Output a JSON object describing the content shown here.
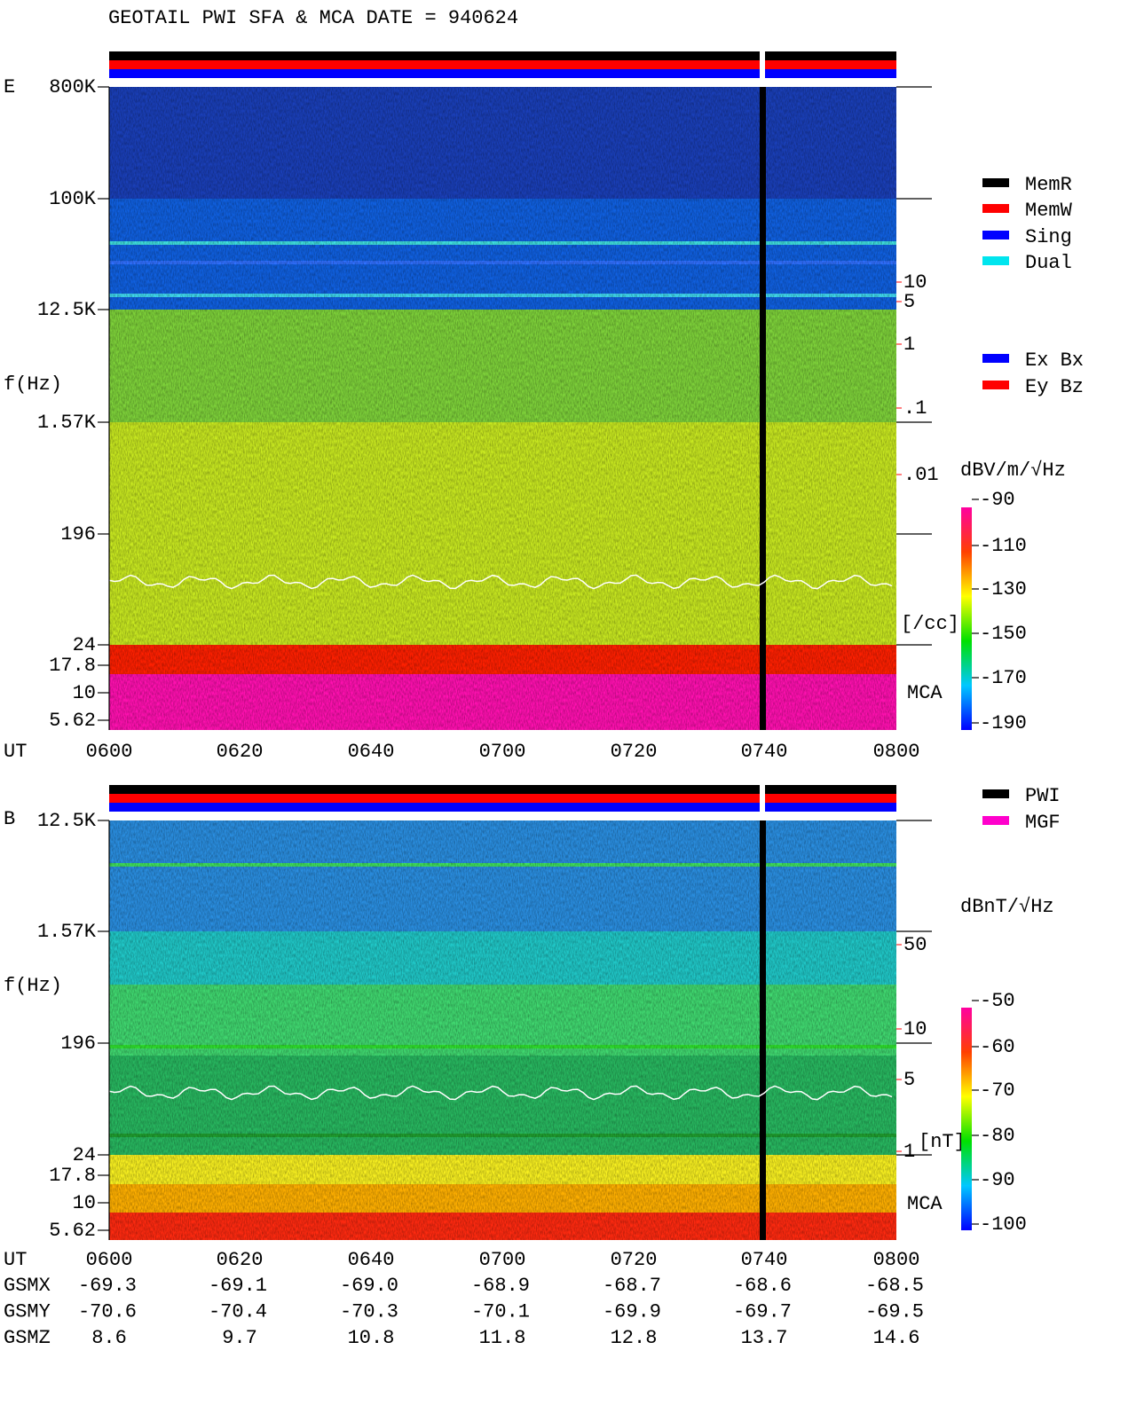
{
  "title": "GEOTAIL  PWI SFA & MCA   DATE = 940624",
  "panels": [
    {
      "label": "E",
      "ylabel": "f(Hz)",
      "yticks": [
        "800K",
        "100K",
        "12.5K",
        "1.57K",
        "196",
        "24",
        "17.8",
        "10",
        "5.62"
      ],
      "xlabel": "UT",
      "xticks": [
        "0600",
        "0620",
        "0640",
        "0700",
        "0720",
        "0740",
        "0800"
      ],
      "mca": "MCA",
      "density_unit": "[/cc]",
      "density_ticks": [
        "10",
        "5",
        "1",
        ".1",
        ".01"
      ],
      "colorbar_unit": "dBV/m/√Hz",
      "colorbar_ticks": [
        "-90",
        "-110",
        "-130",
        "-150",
        "-170",
        "-190"
      ]
    },
    {
      "label": "B",
      "ylabel": "f(Hz)",
      "yticks": [
        "12.5K",
        "1.57K",
        "196",
        "24",
        "17.8",
        "10",
        "5.62"
      ],
      "xlabel": "UT",
      "xticks": [
        "0600",
        "0620",
        "0640",
        "0700",
        "0720",
        "0740",
        "0800"
      ],
      "mca": "MCA",
      "density_unit": "[nT]",
      "density_ticks": [
        "50",
        "10",
        "5",
        "1"
      ],
      "colorbar_unit": "dBnT/√Hz",
      "colorbar_ticks": [
        "-50",
        "-60",
        "-70",
        "-80",
        "-90",
        "-100"
      ]
    }
  ],
  "legend_status": [
    {
      "name": "MemR",
      "color": "#000000"
    },
    {
      "name": "MemW",
      "color": "#ff0000"
    },
    {
      "name": "Sing",
      "color": "#0000ff"
    },
    {
      "name": "Dual",
      "color": "#00e5ee"
    }
  ],
  "legend_component": [
    {
      "name": "Ex Bx",
      "color": "#0000ff"
    },
    {
      "name": "Ey Bz",
      "color": "#ff0000"
    }
  ],
  "legend_line": [
    {
      "name": "PWI",
      "color": "#000000"
    },
    {
      "name": "MGF",
      "color": "#ff00cc"
    }
  ],
  "orbit": [
    {
      "name": "GSMX",
      "values": [
        "-69.3",
        "-69.1",
        "-69.0",
        "-68.9",
        "-68.7",
        "-68.6",
        "-68.5"
      ]
    },
    {
      "name": "GSMY",
      "values": [
        "-70.6",
        "-70.4",
        "-70.3",
        "-70.1",
        "-69.9",
        "-69.7",
        "-69.5"
      ]
    },
    {
      "name": "GSMZ",
      "values": [
        "8.6",
        "9.7",
        "10.8",
        "11.8",
        "12.8",
        "13.7",
        "14.6"
      ]
    }
  ]
}
